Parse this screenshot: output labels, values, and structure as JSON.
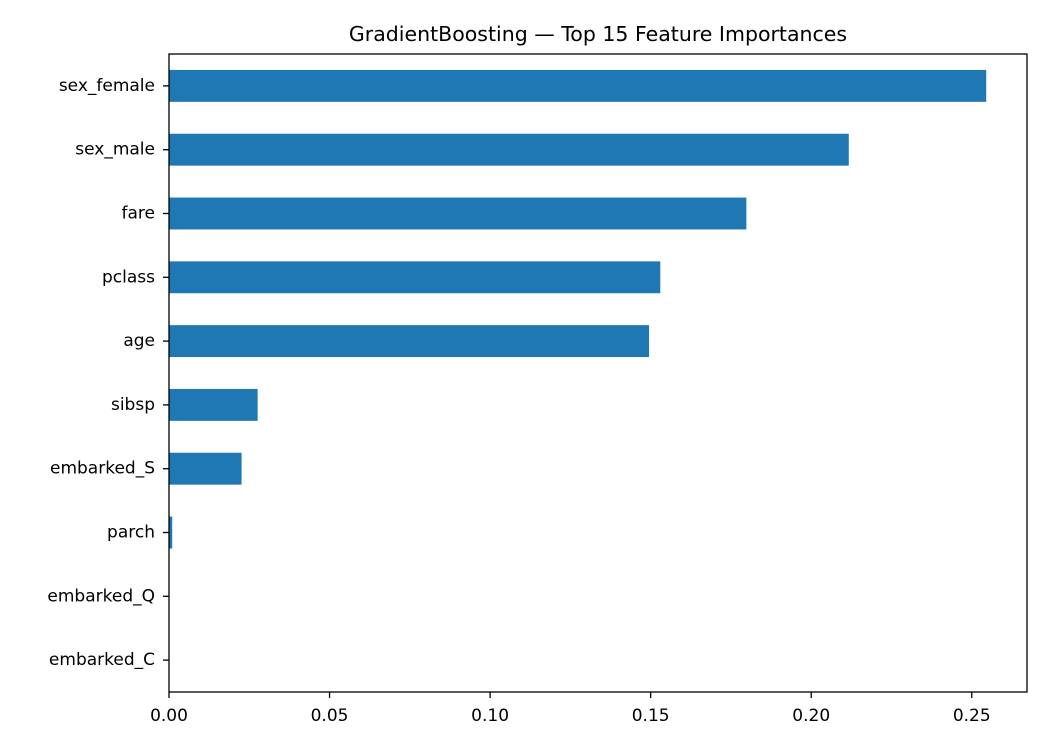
{
  "chart_data": {
    "type": "bar",
    "orientation": "horizontal",
    "title": "GradientBoosting — Top 15 Feature Importances",
    "xlabel": "",
    "ylabel": "",
    "categories": [
      "sex_female",
      "sex_male",
      "fare",
      "pclass",
      "age",
      "sibsp",
      "embarked_S",
      "parch",
      "embarked_Q",
      "embarked_C"
    ],
    "values": [
      0.2545,
      0.2117,
      0.1798,
      0.153,
      0.1495,
      0.0276,
      0.0226,
      0.001,
      0.0,
      0.0
    ],
    "xlim": [
      0,
      0.2672
    ],
    "xticks": [
      0,
      0.05,
      0.1,
      0.15,
      0.2,
      0.25
    ],
    "xtick_labels": [
      "0.00",
      "0.05",
      "0.10",
      "0.15",
      "0.20",
      "0.25"
    ],
    "bar_color": "#1f77b4",
    "grid": false,
    "legend": "none"
  }
}
